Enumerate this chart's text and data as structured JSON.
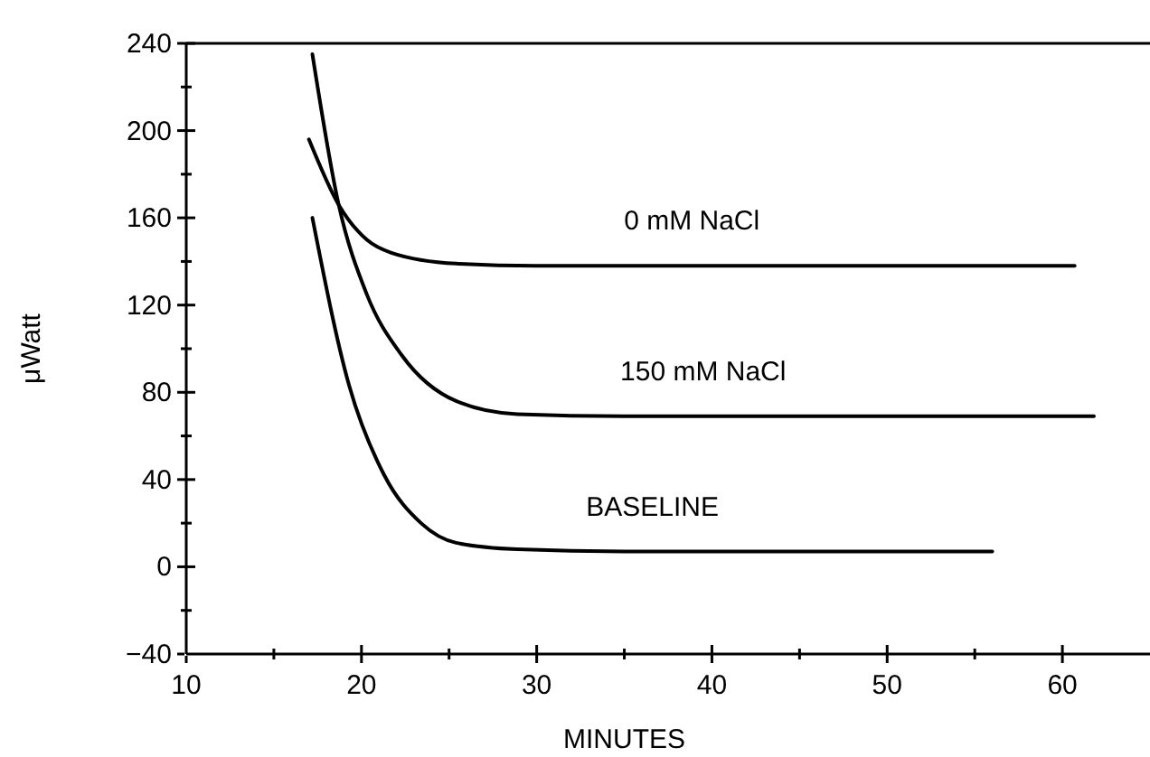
{
  "chart_data": {
    "type": "line",
    "xlabel": "MINUTES",
    "ylabel": "μWatt",
    "xlim": [
      10,
      65
    ],
    "ylim": [
      -40,
      240
    ],
    "xticks": [
      10,
      {
        "value": 15,
        "label": null
      },
      20,
      {
        "value": 25,
        "label": null
      },
      30,
      {
        "value": 35,
        "label": null
      },
      40,
      {
        "value": 45,
        "label": null
      },
      50,
      {
        "value": 55,
        "label": null
      },
      60
    ],
    "yticks": [
      -40,
      {
        "value": -20,
        "label": null
      },
      0,
      {
        "value": 20,
        "label": null
      },
      40,
      {
        "value": 60,
        "label": null
      },
      80,
      {
        "value": 100,
        "label": null
      },
      120,
      {
        "value": 140,
        "label": null
      },
      160,
      {
        "value": 180,
        "label": null
      },
      200,
      {
        "value": 220,
        "label": null
      },
      240
    ],
    "grid": false,
    "marker": "none",
    "line_style": "solid",
    "series": [
      {
        "name": "0 mM NaCl",
        "color": "#000000",
        "x": [
          17,
          18.7,
          20.3,
          21.7,
          25.4,
          30,
          60.7
        ],
        "values": [
          196,
          166,
          150,
          144,
          139,
          138,
          138
        ]
      },
      {
        "name": "150 mM NaCl",
        "color": "#000000",
        "x": [
          17.2,
          18.7,
          20.3,
          22.3,
          25.4,
          28.9,
          35,
          61.8
        ],
        "values": [
          235,
          166,
          125,
          97,
          76,
          70,
          69,
          69
        ]
      },
      {
        "name": "BASELINE",
        "color": "#000000",
        "x": [
          17.2,
          19.3,
          21.3,
          23.4,
          25.4,
          28.9,
          35,
          56
        ],
        "values": [
          160,
          83,
          42,
          20,
          11,
          8,
          7,
          7
        ]
      }
    ]
  }
}
